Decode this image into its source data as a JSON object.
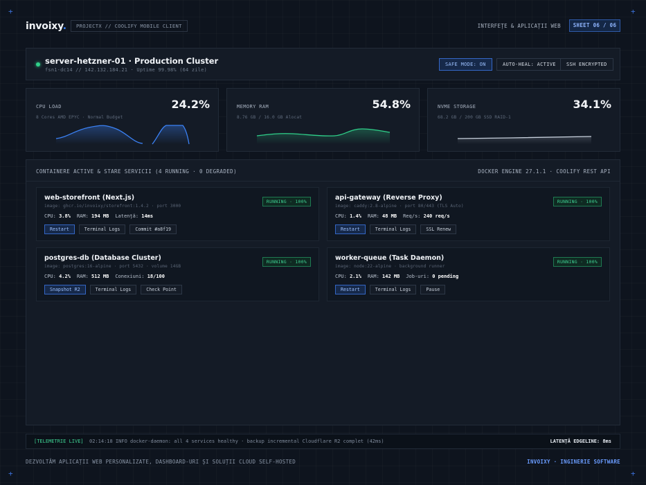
{
  "header": {
    "logo": "invoixy",
    "logo_dot": ".",
    "project_tag": "PROJECTX // COOLIFY MOBILE CLIENT",
    "section_label": "INTERFEȚE & APLICAȚII WEB",
    "sheet": "SHEET 06 / 06"
  },
  "server": {
    "name": "server-hetzner-01 · Production Cluster",
    "meta": "fsn1-dc14 // 142.132.184.21 · Uptime 99.98% (64 zile)",
    "status_color": "#2fd08a",
    "pills": [
      "SAFE MODE: ON",
      "AUTO-HEAL: ACTIVE",
      "SSH ENCRYPTED"
    ]
  },
  "metrics": [
    {
      "label": "CPU LOAD",
      "sub": "8 Cores AMD EPYC · Normal Budget",
      "value": "24.2%",
      "color": "#3b82f6"
    },
    {
      "label": "MEMORY RAM",
      "sub": "8.76 GB / 16.0 GB Alocat",
      "value": "54.8%",
      "color": "#2fd08a"
    },
    {
      "label": "NVME STORAGE",
      "sub": "68.2 GB / 200 GB SSD RAID-1",
      "value": "34.1%",
      "color": "#c7d0dc"
    }
  ],
  "containers": {
    "title": "CONTAINERE ACTIVE & STARE SERVICII (4 RUNNING · 0 DEGRADED)",
    "engine": "DOCKER ENGINE 27.1.1 · COOLIFY REST API",
    "items": [
      {
        "title": "web-storefront (Next.js)",
        "sub": "image: ghcr.io/invoixy/storefront:1.4.2 · port 3000",
        "status": "RUNNING · 100%",
        "stats": [
          {
            "label": "CPU:",
            "value": "3.8%"
          },
          {
            "label": "RAM:",
            "value": "194 MB"
          },
          {
            "label": "Latență:",
            "value": "14ms"
          }
        ],
        "buttons": [
          "Restart",
          "Terminal Logs",
          "Commit #a8f19"
        ]
      },
      {
        "title": "api-gateway (Reverse Proxy)",
        "sub": "image: caddy:2.8-alpine · port 80/443 (TLS Auto)",
        "status": "RUNNING · 100%",
        "stats": [
          {
            "label": "CPU:",
            "value": "1.4%"
          },
          {
            "label": "RAM:",
            "value": "48 MB"
          },
          {
            "label": "Req/s:",
            "value": "240 req/s"
          }
        ],
        "buttons": [
          "Restart",
          "Terminal Logs",
          "SSL Renew"
        ]
      },
      {
        "title": "postgres-db (Database Cluster)",
        "sub": "image: postgres:16-alpine · port 5432 · volume 14GB",
        "status": "RUNNING · 100%",
        "stats": [
          {
            "label": "CPU:",
            "value": "4.2%"
          },
          {
            "label": "RAM:",
            "value": "512 MB"
          },
          {
            "label": "Conexiuni:",
            "value": "18/100"
          }
        ],
        "buttons": [
          "Snapshot R2",
          "Terminal Logs",
          "Check Point"
        ]
      },
      {
        "title": "worker-queue (Task Daemon)",
        "sub": "image: node:22-alpine · background runner",
        "status": "RUNNING · 100%",
        "stats": [
          {
            "label": "CPU:",
            "value": "2.1%"
          },
          {
            "label": "RAM:",
            "value": "142 MB"
          },
          {
            "label": "Job-uri:",
            "value": "0 pending"
          }
        ],
        "buttons": [
          "Restart",
          "Terminal Logs",
          "Pause"
        ]
      }
    ]
  },
  "telemetry": {
    "tag": "[TELEMETRIE LIVE]",
    "message": "02:14:18 INFO docker-daemon: all 4 services healthy · backup incremental Cloudflare R2 complet (42ms)",
    "latency": "LATENȚĂ EDGELINE: 8ms"
  },
  "footer": {
    "left": "DEZVOLTĂM APLICAȚII WEB PERSONALIZATE, DASHBOARD-URI ȘI SOLUȚII CLOUD SELF-HOSTED",
    "right": "INVOIXY · INGINERIE SOFTWARE"
  }
}
